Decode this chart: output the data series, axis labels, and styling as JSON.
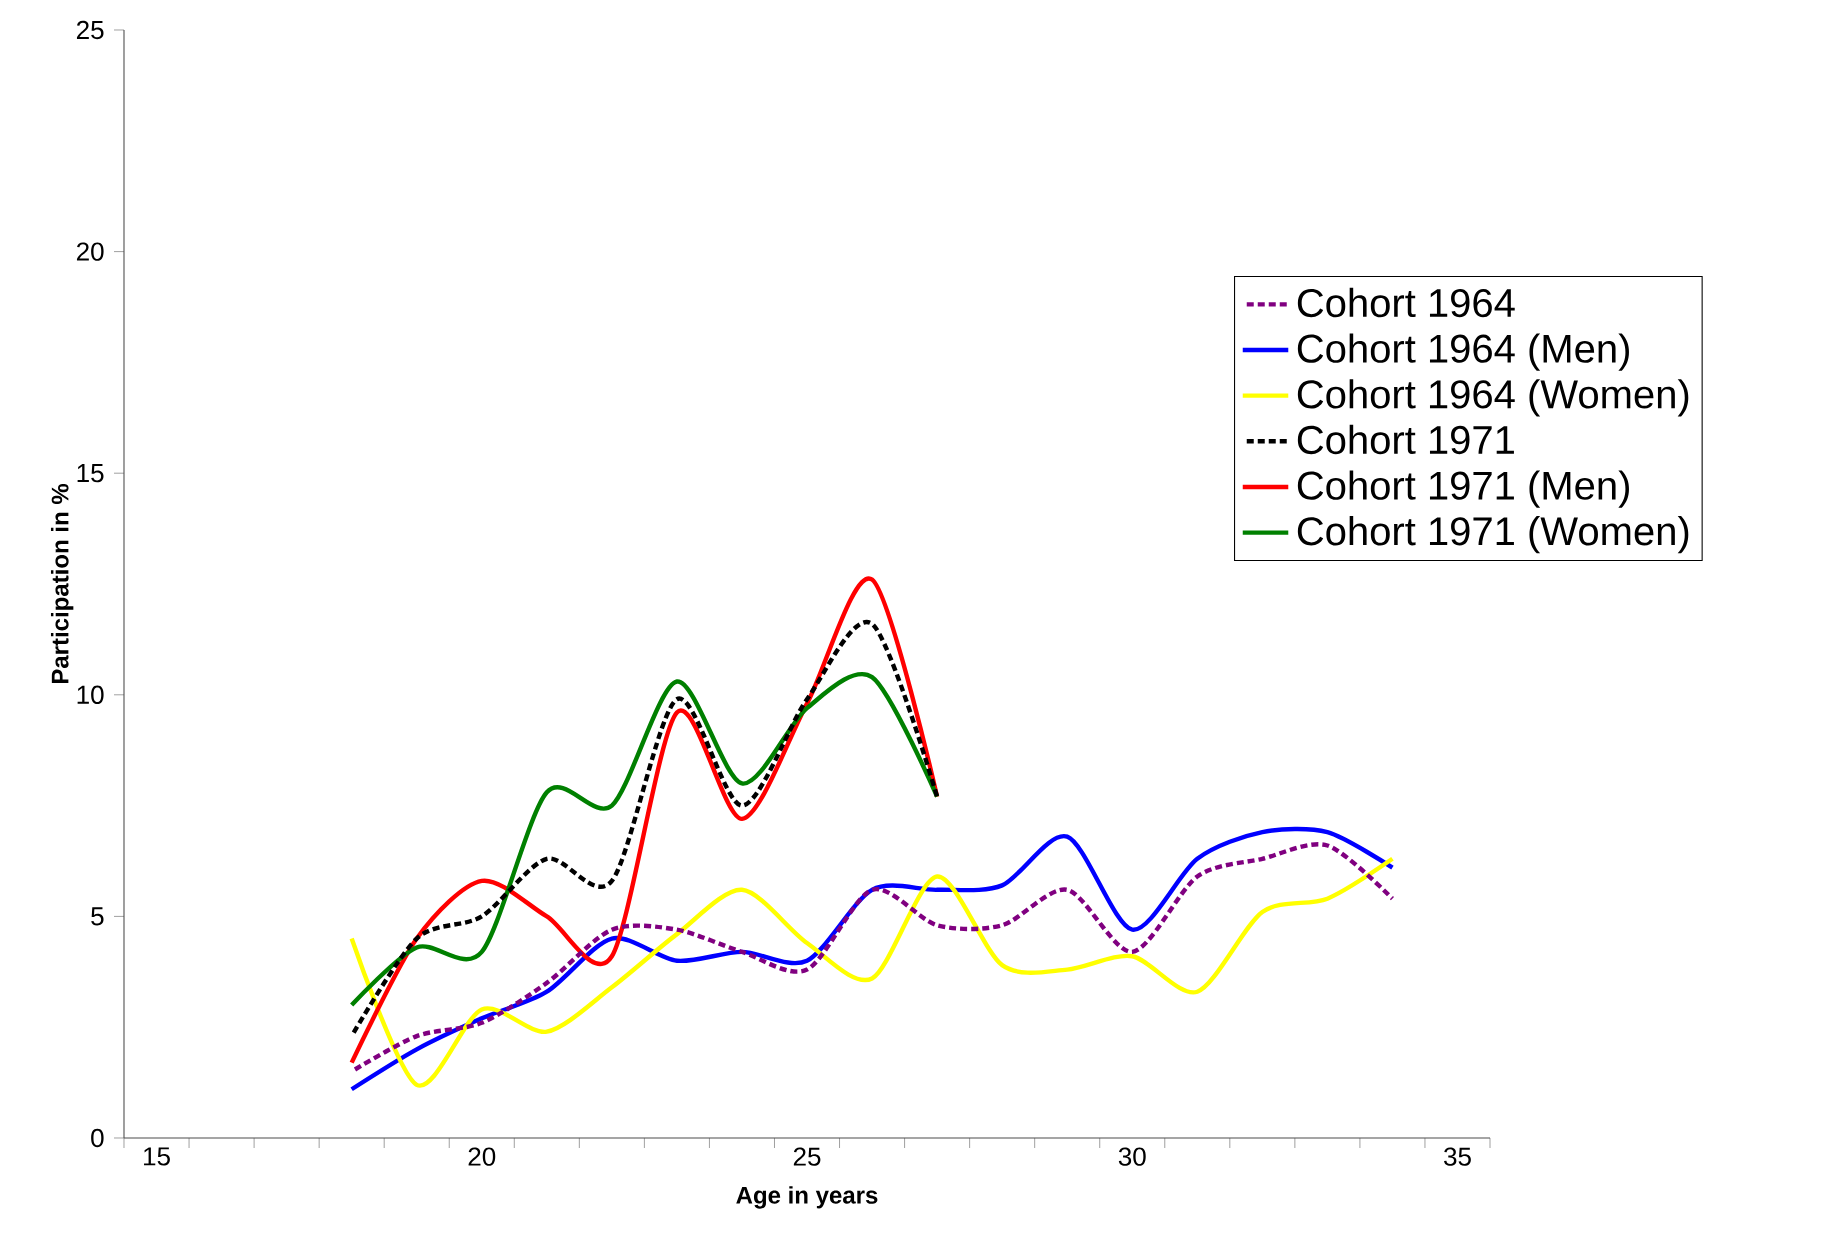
{
  "chart_data": {
    "type": "line",
    "xlabel": "Age in years",
    "ylabel": "Participation in %",
    "xlim": [
      14.5,
      35.5
    ],
    "xticks": [
      15,
      20,
      25,
      30,
      35,
      {
        "value": 14.5,
        "label": null
      },
      {
        "value": 15.5,
        "label": null
      },
      {
        "value": 16.5,
        "label": null
      },
      {
        "value": 17.5,
        "label": null
      },
      {
        "value": 18.5,
        "label": null
      },
      {
        "value": 19.5,
        "label": null
      },
      {
        "value": 20.5,
        "label": null
      },
      {
        "value": 21.5,
        "label": null
      },
      {
        "value": 22.5,
        "label": null
      },
      {
        "value": 23.5,
        "label": null
      },
      {
        "value": 24.5,
        "label": null
      },
      {
        "value": 25.5,
        "label": null
      },
      {
        "value": 26.5,
        "label": null
      },
      {
        "value": 27.5,
        "label": null
      },
      {
        "value": 28.5,
        "label": null
      },
      {
        "value": 29.5,
        "label": null
      },
      {
        "value": 30.5,
        "label": null
      },
      {
        "value": 31.5,
        "label": null
      },
      {
        "value": 32.5,
        "label": null
      },
      {
        "value": 33.5,
        "label": null
      },
      {
        "value": 34.5,
        "label": null
      },
      {
        "value": 35.5,
        "label": null
      }
    ],
    "ylim": [
      0,
      25
    ],
    "yticks": [
      0,
      5,
      10,
      15,
      20,
      25
    ],
    "grid": false,
    "legend": "right",
    "marker": "none",
    "x": [
      18,
      19,
      20,
      21,
      22,
      23,
      24,
      25,
      26,
      27,
      28,
      29,
      30,
      31,
      32,
      33,
      34
    ],
    "series": [
      {
        "name": "Cohort 1964",
        "color": "#800080",
        "line_style": "dashed",
        "values": [
          1.5,
          2.3,
          2.6,
          3.5,
          4.7,
          4.7,
          4.2,
          3.8,
          5.6,
          4.8,
          4.8,
          5.6,
          4.2,
          5.9,
          6.3,
          6.6,
          5.4
        ]
      },
      {
        "name": "Cohort 1964 (Men)",
        "color": "#0000ff",
        "line_style": "solid",
        "values": [
          1.1,
          2.0,
          2.7,
          3.3,
          4.5,
          4.0,
          4.2,
          4.0,
          5.6,
          5.6,
          5.7,
          6.8,
          4.7,
          6.3,
          6.9,
          6.9,
          6.1
        ]
      },
      {
        "name": "Cohort 1964 (Women)",
        "color": "#ffff00",
        "line_style": "solid",
        "values": [
          4.5,
          1.2,
          2.9,
          2.4,
          3.4,
          4.6,
          5.6,
          4.4,
          3.6,
          5.9,
          3.9,
          3.8,
          4.1,
          3.3,
          5.1,
          5.4,
          6.3
        ]
      },
      {
        "name": "Cohort 1971",
        "color": "#000000",
        "line_style": "dashed",
        "values": [
          2.3,
          4.5,
          5.0,
          6.3,
          5.8,
          9.9,
          7.5,
          9.9,
          11.6,
          7.7,
          null,
          null,
          null,
          null,
          null,
          null,
          null
        ]
      },
      {
        "name": "Cohort 1971 (Men)",
        "color": "#ff0000",
        "line_style": "solid",
        "values": [
          1.7,
          4.5,
          5.8,
          5.0,
          4.1,
          9.6,
          7.2,
          9.8,
          12.6,
          7.7,
          null,
          null,
          null,
          null,
          null,
          null,
          null
        ]
      },
      {
        "name": "Cohort 1971 (Women)",
        "color": "#008000",
        "line_style": "solid",
        "values": [
          3.0,
          4.3,
          4.2,
          7.8,
          7.5,
          10.3,
          8.0,
          9.7,
          10.4,
          7.7,
          null,
          null,
          null,
          null,
          null,
          null,
          null
        ]
      }
    ]
  }
}
